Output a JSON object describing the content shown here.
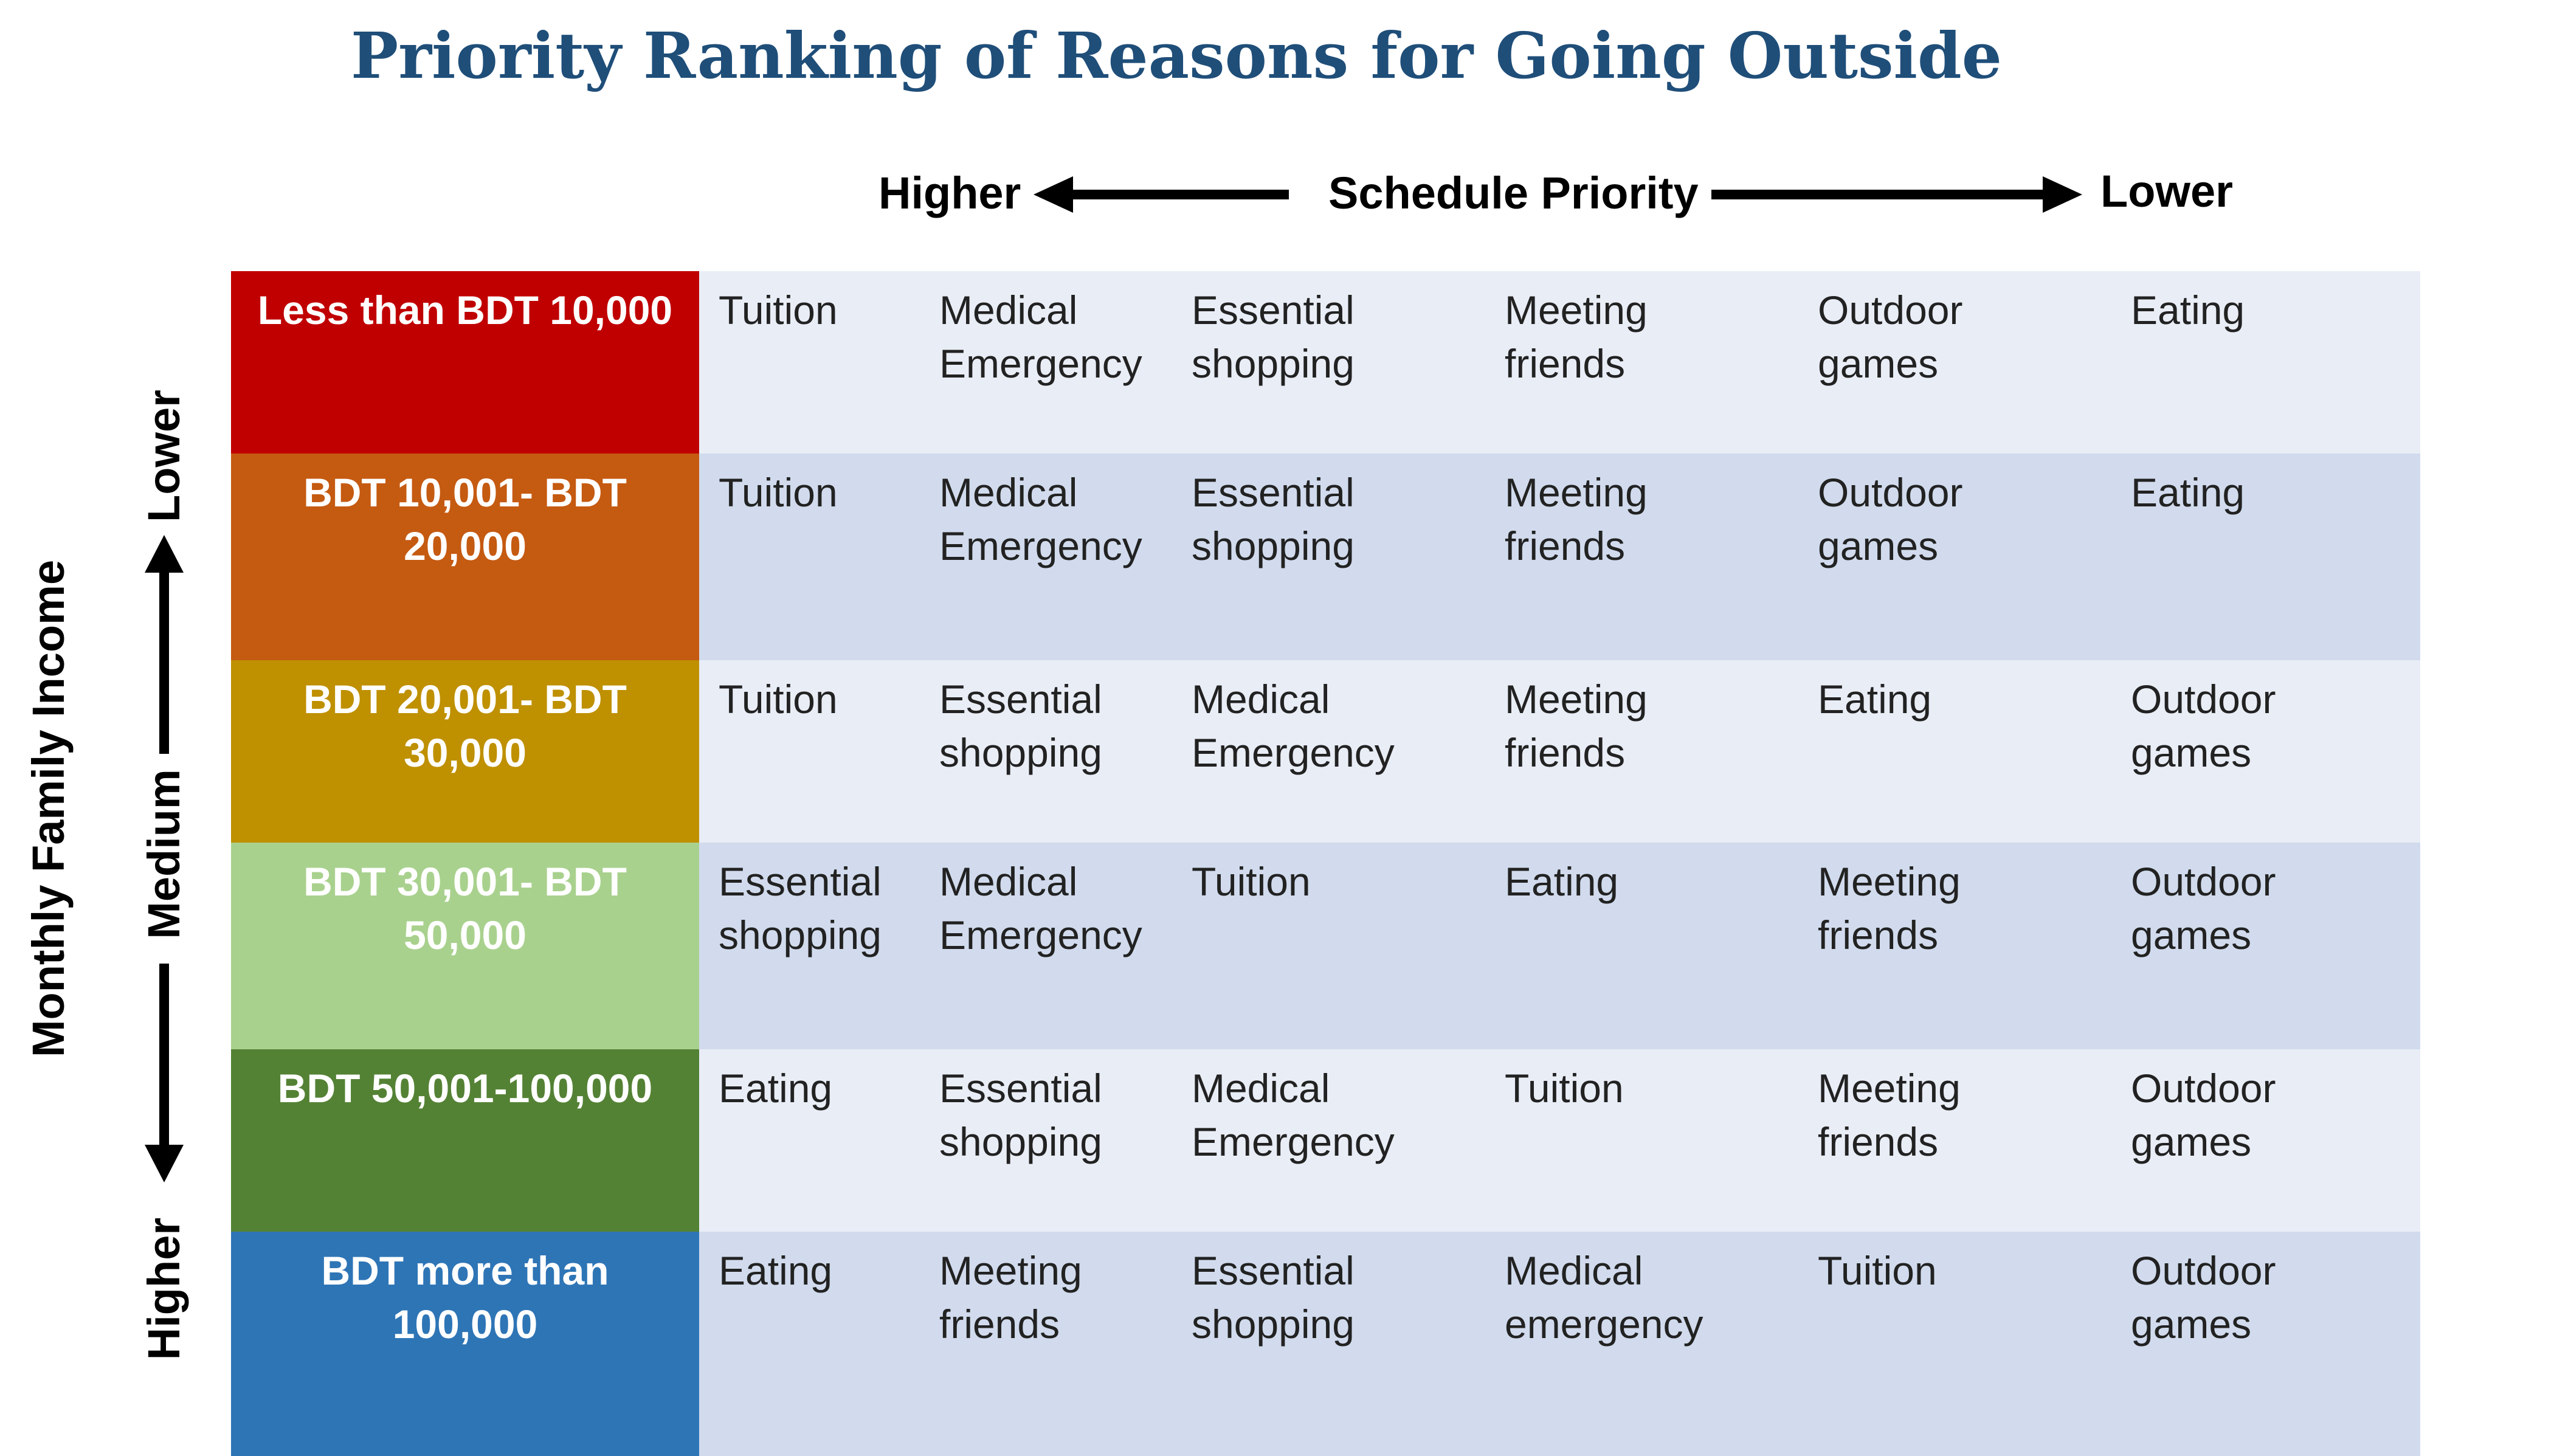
{
  "title": "Priority Ranking of Reasons for Going Outside",
  "header": {
    "higher": "Higher",
    "center": "Schedule Priority",
    "lower": "Lower"
  },
  "side": {
    "axis_label": "Monthly Family Income",
    "lower": "Lower",
    "medium": "Medium",
    "higher": "Higher"
  },
  "rows": [
    {
      "label": "Less than BDT 10,000",
      "color": "#c00000",
      "bg": "#e9edf6",
      "cells": [
        "Tuition",
        "Medical\nEmergency",
        "Essential\nshopping",
        "Meeting\nfriends",
        "Outdoor\ngames",
        "Eating"
      ]
    },
    {
      "label": "BDT 10,001- BDT\n20,000",
      "color": "#c55a11",
      "bg": "#d1dbed",
      "cells": [
        "Tuition",
        "Medical\nEmergency",
        "Essential\nshopping",
        "Meeting\nfriends",
        "Outdoor\ngames",
        "Eating"
      ]
    },
    {
      "label": "BDT 20,001- BDT\n30,000",
      "color": "#bf9000",
      "bg": "#e9edf6",
      "cells": [
        "Tuition",
        "Essential\nshopping",
        "Medical\nEmergency",
        "Meeting\nfriends",
        "Eating",
        "Outdoor\ngames"
      ]
    },
    {
      "label": "BDT 30,001- BDT\n50,000",
      "color": "#a9d18e",
      "bg": "#d1dbed",
      "cells": [
        "Essential\nshopping",
        "Medical\nEmergency",
        "Tuition",
        "Eating",
        "Meeting\nfriends",
        "Outdoor\ngames"
      ]
    },
    {
      "label": "BDT 50,001-100,000",
      "color": "#548235",
      "bg": "#e9edf6",
      "cells": [
        "Eating",
        "Essential\nshopping",
        "Medical\nEmergency",
        "Tuition",
        "Meeting\nfriends",
        "Outdoor\ngames"
      ]
    },
    {
      "label": "BDT more than\n100,000",
      "color": "#2e75b6",
      "bg": "#d1dbed",
      "cells": [
        "Eating",
        "Meeting\nfriends",
        "Essential\nshopping",
        "Medical\nemergency",
        "Tuition",
        "Outdoor\ngames"
      ]
    }
  ]
}
